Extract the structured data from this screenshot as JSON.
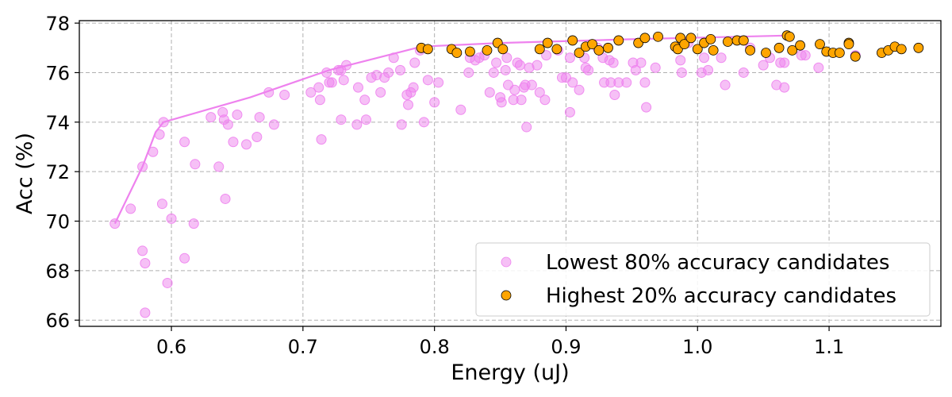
{
  "chart_data": {
    "type": "scatter",
    "xlabel": "Energy (uJ)",
    "ylabel": "Acc (%)",
    "xlim": [
      0.53,
      1.185
    ],
    "ylim": [
      65.75,
      78.1
    ],
    "x_ticks": [
      0.6,
      0.7,
      0.8,
      0.9,
      1.0,
      1.1
    ],
    "x_tick_labels": [
      "0.6",
      "0.7",
      "0.8",
      "0.9",
      "1.0",
      "1.1"
    ],
    "y_ticks": [
      66,
      68,
      70,
      72,
      74,
      76,
      78
    ],
    "y_tick_labels": [
      "66",
      "68",
      "70",
      "72",
      "74",
      "76",
      "78"
    ],
    "grid": true,
    "legend_position": "lower-right",
    "colors": {
      "low": "#ee82ee",
      "high": "#ffa500",
      "frontier": "#ee82ee",
      "point_edge": "#000000"
    },
    "frontier": {
      "name": "Pareto frontier",
      "points": [
        [
          0.557,
          69.9
        ],
        [
          0.578,
          72.2
        ],
        [
          0.588,
          73.6
        ],
        [
          0.594,
          74.0
        ],
        [
          0.66,
          75.0
        ],
        [
          0.72,
          76.1
        ],
        [
          0.79,
          77.05
        ],
        [
          0.85,
          77.2
        ],
        [
          0.95,
          77.35
        ],
        [
          1.07,
          77.5
        ]
      ]
    },
    "series": [
      {
        "name": "Lowest 80% accuracy candidates",
        "points": [
          [
            0.557,
            69.9
          ],
          [
            0.569,
            70.5
          ],
          [
            0.578,
            68.8
          ],
          [
            0.578,
            72.2
          ],
          [
            0.58,
            68.3
          ],
          [
            0.58,
            66.3
          ],
          [
            0.586,
            72.8
          ],
          [
            0.591,
            73.5
          ],
          [
            0.593,
            70.7
          ],
          [
            0.594,
            74.0
          ],
          [
            0.597,
            67.5
          ],
          [
            0.6,
            70.1
          ],
          [
            0.61,
            73.2
          ],
          [
            0.61,
            68.5
          ],
          [
            0.617,
            69.9
          ],
          [
            0.618,
            72.3
          ],
          [
            0.63,
            74.2
          ],
          [
            0.636,
            72.2
          ],
          [
            0.639,
            74.4
          ],
          [
            0.64,
            74.1
          ],
          [
            0.641,
            70.9
          ],
          [
            0.643,
            73.9
          ],
          [
            0.647,
            73.2
          ],
          [
            0.65,
            74.3
          ],
          [
            0.657,
            73.1
          ],
          [
            0.665,
            73.4
          ],
          [
            0.667,
            74.2
          ],
          [
            0.674,
            75.2
          ],
          [
            0.678,
            73.9
          ],
          [
            0.686,
            75.1
          ],
          [
            0.706,
            75.2
          ],
          [
            0.712,
            75.4
          ],
          [
            0.713,
            74.9
          ],
          [
            0.714,
            73.3
          ],
          [
            0.718,
            76.0
          ],
          [
            0.72,
            75.6
          ],
          [
            0.722,
            75.6
          ],
          [
            0.727,
            76.1
          ],
          [
            0.729,
            76.1
          ],
          [
            0.729,
            74.1
          ],
          [
            0.731,
            75.7
          ],
          [
            0.733,
            76.3
          ],
          [
            0.741,
            73.9
          ],
          [
            0.742,
            75.4
          ],
          [
            0.747,
            74.9
          ],
          [
            0.748,
            74.1
          ],
          [
            0.752,
            75.8
          ],
          [
            0.756,
            75.9
          ],
          [
            0.759,
            75.2
          ],
          [
            0.762,
            75.8
          ],
          [
            0.765,
            76.0
          ],
          [
            0.769,
            76.6
          ],
          [
            0.774,
            76.1
          ],
          [
            0.775,
            73.9
          ],
          [
            0.779,
            75.1
          ],
          [
            0.78,
            74.7
          ],
          [
            0.782,
            75.2
          ],
          [
            0.784,
            75.4
          ],
          [
            0.785,
            76.4
          ],
          [
            0.789,
            76.9
          ],
          [
            0.792,
            74.0
          ],
          [
            0.795,
            75.7
          ],
          [
            0.8,
            74.8
          ],
          [
            0.803,
            75.6
          ],
          [
            0.82,
            74.5
          ],
          [
            0.826,
            76.0
          ],
          [
            0.827,
            76.6
          ],
          [
            0.831,
            76.5
          ],
          [
            0.834,
            76.6
          ],
          [
            0.838,
            76.7
          ],
          [
            0.842,
            75.2
          ],
          [
            0.845,
            76.0
          ],
          [
            0.847,
            76.4
          ],
          [
            0.85,
            75.0
          ],
          [
            0.851,
            74.8
          ],
          [
            0.854,
            76.1
          ],
          [
            0.855,
            76.6
          ],
          [
            0.856,
            75.5
          ],
          [
            0.86,
            74.9
          ],
          [
            0.861,
            75.3
          ],
          [
            0.863,
            76.4
          ],
          [
            0.865,
            76.3
          ],
          [
            0.866,
            74.9
          ],
          [
            0.868,
            75.4
          ],
          [
            0.869,
            75.5
          ],
          [
            0.87,
            73.8
          ],
          [
            0.872,
            76.2
          ],
          [
            0.874,
            75.5
          ],
          [
            0.878,
            76.3
          ],
          [
            0.88,
            75.2
          ],
          [
            0.884,
            74.9
          ],
          [
            0.885,
            76.7
          ],
          [
            0.894,
            76.9
          ],
          [
            0.897,
            75.8
          ],
          [
            0.9,
            75.8
          ],
          [
            0.903,
            74.4
          ],
          [
            0.903,
            76.6
          ],
          [
            0.905,
            75.6
          ],
          [
            0.91,
            75.3
          ],
          [
            0.914,
            76.6
          ],
          [
            0.915,
            76.2
          ],
          [
            0.917,
            76.1
          ],
          [
            0.924,
            77.0
          ],
          [
            0.928,
            76.6
          ],
          [
            0.929,
            75.6
          ],
          [
            0.933,
            76.5
          ],
          [
            0.934,
            75.6
          ],
          [
            0.936,
            76.4
          ],
          [
            0.937,
            75.1
          ],
          [
            0.94,
            75.6
          ],
          [
            0.946,
            75.6
          ],
          [
            0.951,
            76.4
          ],
          [
            0.953,
            76.1
          ],
          [
            0.957,
            76.4
          ],
          [
            0.96,
            75.6
          ],
          [
            0.961,
            74.6
          ],
          [
            0.968,
            76.2
          ],
          [
            0.987,
            76.5
          ],
          [
            0.988,
            76.0
          ],
          [
            0.993,
            77.2
          ],
          [
            1.003,
            76.0
          ],
          [
            1.005,
            76.6
          ],
          [
            1.008,
            76.1
          ],
          [
            1.018,
            76.6
          ],
          [
            1.021,
            75.5
          ],
          [
            1.035,
            76.0
          ],
          [
            1.04,
            77.0
          ],
          [
            1.05,
            76.3
          ],
          [
            1.055,
            76.6
          ],
          [
            1.06,
            75.5
          ],
          [
            1.063,
            76.4
          ],
          [
            1.066,
            75.4
          ],
          [
            1.066,
            76.4
          ],
          [
            1.079,
            76.7
          ],
          [
            1.082,
            76.7
          ],
          [
            1.092,
            76.2
          ],
          [
            1.12,
            76.7
          ]
        ]
      },
      {
        "name": "Highest 20% accuracy candidates",
        "points": [
          [
            0.79,
            77.0
          ],
          [
            0.795,
            76.95
          ],
          [
            0.813,
            76.95
          ],
          [
            0.817,
            76.8
          ],
          [
            0.827,
            76.85
          ],
          [
            0.84,
            76.9
          ],
          [
            0.848,
            77.2
          ],
          [
            0.852,
            76.95
          ],
          [
            0.88,
            76.95
          ],
          [
            0.886,
            77.2
          ],
          [
            0.893,
            76.95
          ],
          [
            0.905,
            77.3
          ],
          [
            0.91,
            76.8
          ],
          [
            0.915,
            77.05
          ],
          [
            0.92,
            77.15
          ],
          [
            0.925,
            76.9
          ],
          [
            0.932,
            77.0
          ],
          [
            0.94,
            77.3
          ],
          [
            0.955,
            77.2
          ],
          [
            0.96,
            77.4
          ],
          [
            0.97,
            77.45
          ],
          [
            0.983,
            77.05
          ],
          [
            0.985,
            76.95
          ],
          [
            0.987,
            77.4
          ],
          [
            0.99,
            77.15
          ],
          [
            0.995,
            77.4
          ],
          [
            1.0,
            76.95
          ],
          [
            1.005,
            77.2
          ],
          [
            1.01,
            77.35
          ],
          [
            1.012,
            76.9
          ],
          [
            1.023,
            77.25
          ],
          [
            1.03,
            77.3
          ],
          [
            1.035,
            77.3
          ],
          [
            1.04,
            76.9
          ],
          [
            1.052,
            76.8
          ],
          [
            1.062,
            77.0
          ],
          [
            1.068,
            77.5
          ],
          [
            1.072,
            76.9
          ],
          [
            1.078,
            77.1
          ],
          [
            1.093,
            77.15
          ],
          [
            1.098,
            76.85
          ],
          [
            1.103,
            76.8
          ],
          [
            1.108,
            76.8
          ],
          [
            1.115,
            77.2
          ],
          [
            1.12,
            76.65
          ],
          [
            1.14,
            76.8
          ],
          [
            1.145,
            76.9
          ],
          [
            1.15,
            77.05
          ],
          [
            1.155,
            76.95
          ],
          [
            1.168,
            77.0
          ],
          [
            1.115,
            77.15
          ],
          [
            1.07,
            77.45
          ]
        ]
      }
    ]
  }
}
